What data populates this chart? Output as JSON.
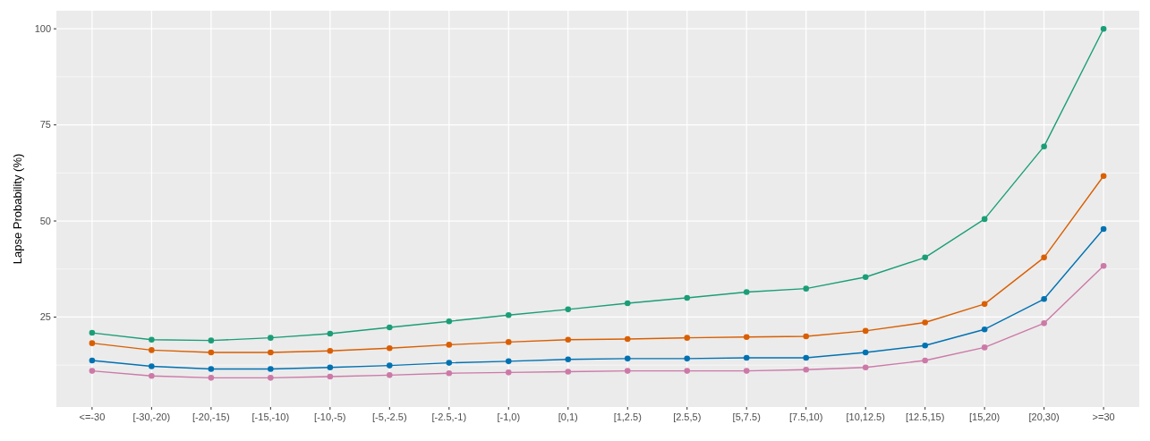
{
  "chart_data": {
    "type": "line",
    "ylabel": "Lapse Probability (%)",
    "categories": [
      "<=-30",
      "[-30,-20)",
      "[-20,-15)",
      "[-15,-10)",
      "[-10,-5)",
      "[-5,-2.5)",
      "[-2.5,-1)",
      "[-1,0)",
      "[0,1)",
      "[1,2.5)",
      "[2.5,5)",
      "[5,7.5)",
      "[7.5,10)",
      "[10,12.5)",
      "[12.5,15)",
      "[15,20)",
      "[20,30)",
      ">=30"
    ],
    "series": [
      {
        "color": "#1b9e77",
        "values": [
          20.9,
          19.1,
          18.9,
          19.6,
          20.7,
          22.3,
          23.9,
          25.5,
          27.0,
          28.6,
          30.0,
          31.5,
          32.4,
          35.4,
          40.5,
          50.5,
          69.4,
          100
        ]
      },
      {
        "color": "#d95f02",
        "values": [
          18.2,
          16.4,
          15.8,
          15.8,
          16.2,
          16.9,
          17.8,
          18.5,
          19.1,
          19.3,
          19.6,
          19.8,
          20.0,
          21.4,
          23.6,
          28.4,
          40.5,
          61.7
        ]
      },
      {
        "color": "#0072b2",
        "values": [
          13.7,
          12.2,
          11.5,
          11.5,
          11.9,
          12.4,
          13.1,
          13.5,
          14.0,
          14.2,
          14.2,
          14.4,
          14.4,
          15.8,
          17.6,
          21.8,
          29.7,
          47.9
        ]
      },
      {
        "color": "#cc79a7",
        "values": [
          11.0,
          9.7,
          9.2,
          9.2,
          9.5,
          9.9,
          10.4,
          10.6,
          10.8,
          11.0,
          11.0,
          11.0,
          11.3,
          11.9,
          13.7,
          17.1,
          23.4,
          38.3
        ]
      }
    ],
    "ylim": [
      1.6,
      104.7
    ],
    "yticks": [
      25,
      50,
      75,
      100
    ],
    "grid": true,
    "marker": "circle",
    "line_style": "solid"
  }
}
